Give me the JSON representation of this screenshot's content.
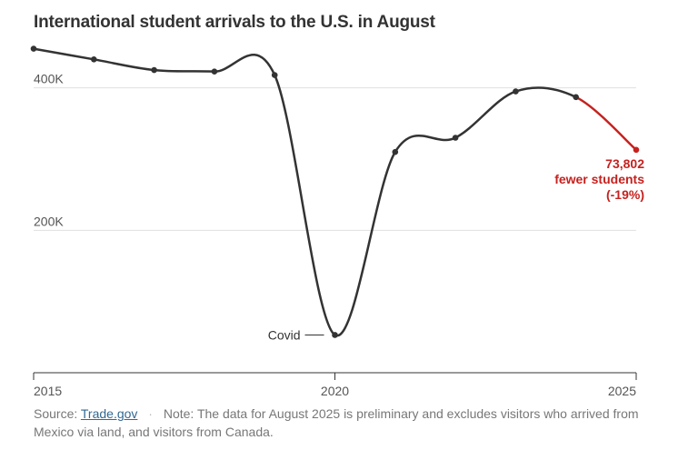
{
  "chart_data": {
    "type": "line",
    "title": "International student arrivals to the U.S. in August",
    "x": [
      2015,
      2016,
      2017,
      2018,
      2019,
      2020,
      2021,
      2022,
      2023,
      2024,
      2025
    ],
    "values": [
      455000,
      440000,
      425000,
      423000,
      418000,
      53000,
      310000,
      330000,
      395000,
      387000,
      313000
    ],
    "ylim": [
      0,
      480000
    ],
    "xlim": [
      2015,
      2025
    ],
    "y_ticks": [
      {
        "value": 200000,
        "label": "200K"
      },
      {
        "value": 400000,
        "label": "400K"
      }
    ],
    "x_ticks": [
      {
        "value": 2015,
        "label": "2015"
      },
      {
        "value": 2020,
        "label": "2020"
      },
      {
        "value": 2025,
        "label": "2025"
      }
    ],
    "grid": "horizontal",
    "annotations": {
      "covid": "Covid",
      "callout": [
        "73,802",
        "fewer students",
        "(-19%)"
      ]
    },
    "colors": {
      "line": "#333333",
      "highlight": "#c5221f",
      "grid": "#e0e0e0"
    }
  },
  "footer": {
    "source_label": "Source:",
    "source_link": "Trade.gov",
    "note": "Note: The data for August 2025 is preliminary and excludes visitors who arrived from Mexico via land, and visitors from Canada."
  }
}
